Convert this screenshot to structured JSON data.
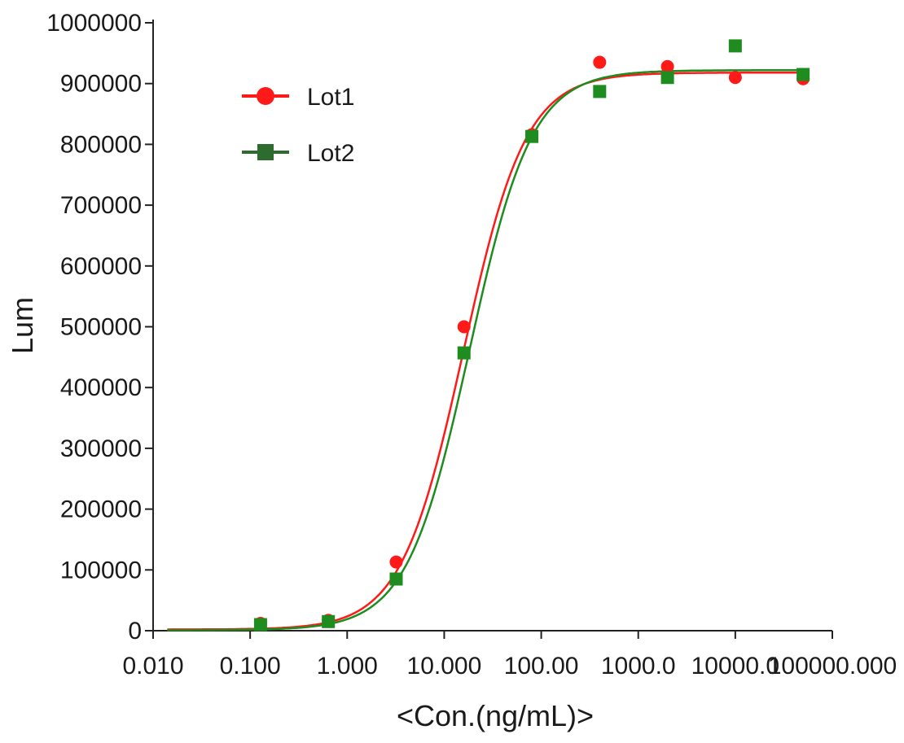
{
  "chart_data": {
    "type": "scatter",
    "xlabel": "<Con.(ng/mL)>",
    "ylabel": "Lum",
    "x_scale": "log",
    "xlim": [
      0.01,
      100000
    ],
    "ylim": [
      0,
      1000000
    ],
    "x_ticks": [
      0.01,
      0.1,
      1,
      10,
      100,
      1000,
      10000,
      100000
    ],
    "x_tick_labels": [
      "0.010",
      "0.100",
      "1.000",
      "10.000",
      "100.00",
      "1000.0",
      "10000.0",
      "100000.000"
    ],
    "y_ticks": [
      0,
      100000,
      200000,
      300000,
      400000,
      500000,
      600000,
      700000,
      800000,
      900000,
      1000000
    ],
    "y_tick_labels": [
      "0",
      "100000",
      "200000",
      "300000",
      "400000",
      "500000",
      "600000",
      "700000",
      "800000",
      "900000",
      "1000000"
    ],
    "legend_position": "top-left",
    "grid": false,
    "series": [
      {
        "name": "Lot1",
        "color": "#ff1a1a",
        "marker": "circle",
        "x": [
          0.128,
          0.64,
          3.2,
          16,
          80,
          400,
          2000,
          10000,
          50000
        ],
        "y": [
          12000,
          17000,
          113000,
          500000,
          816000,
          935000,
          928000,
          910000,
          908000
        ],
        "fit": {
          "bottom": 2000,
          "top": 918000,
          "ec50": 15.8,
          "hill": 1.35
        }
      },
      {
        "name": "Lot2",
        "color": "#1e8c1e",
        "legend_marker_color": "#2e6b2e",
        "marker": "square",
        "x": [
          0.128,
          0.64,
          3.2,
          16,
          80,
          400,
          2000,
          10000,
          50000
        ],
        "y": [
          10000,
          15000,
          85000,
          457000,
          813000,
          887000,
          910000,
          962000,
          915000
        ],
        "fit": {
          "bottom": 1000,
          "top": 922000,
          "ec50": 18.2,
          "hill": 1.35
        }
      }
    ]
  }
}
